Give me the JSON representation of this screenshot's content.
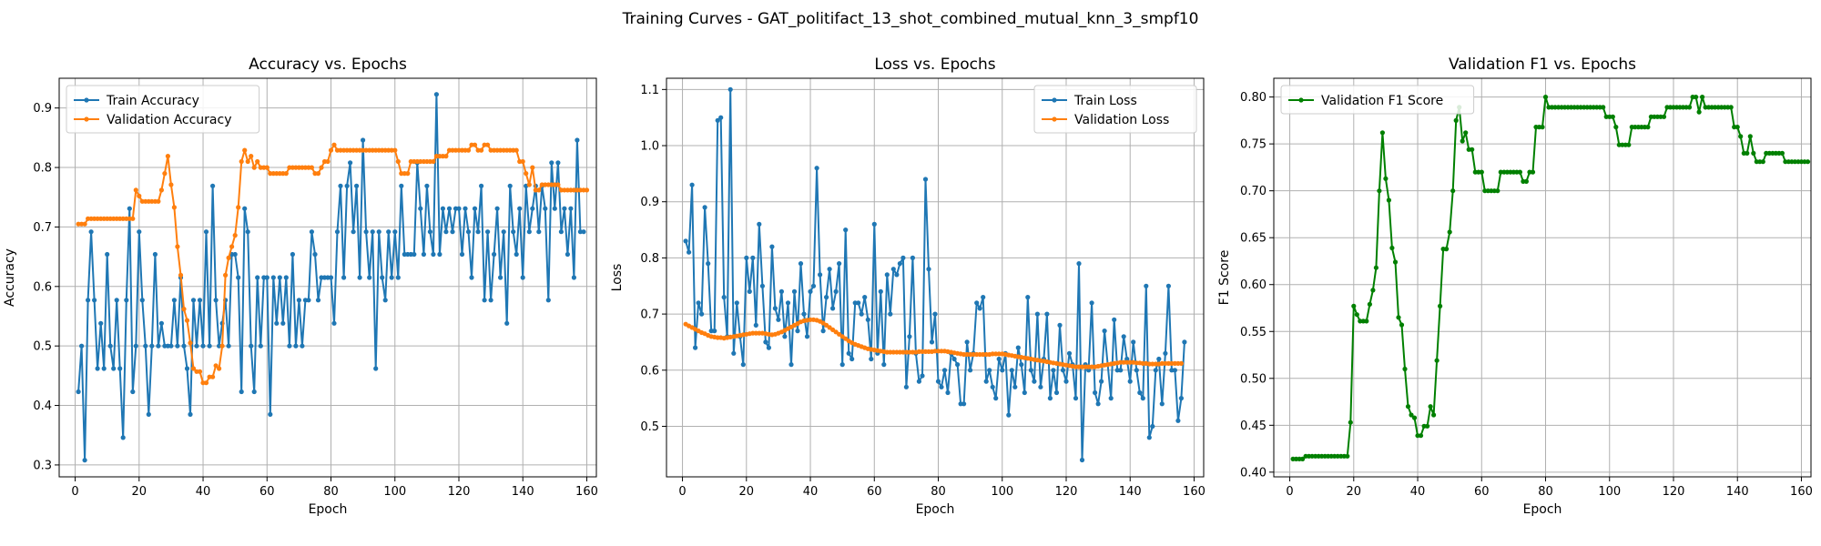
{
  "suptitle": "Training Curves - GAT_politifact_13_shot_combined_mutual_knn_3_smpf10",
  "colors": {
    "train": "#1f77b4",
    "val": "#ff7f0e",
    "f1": "#008000",
    "grid": "#b0b0b0"
  },
  "chart_data": [
    {
      "type": "line",
      "title": "Accuracy vs. Epochs",
      "xlabel": "Epoch",
      "ylabel": "Accuracy",
      "xlim": [
        -5,
        163
      ],
      "ylim": [
        0.28,
        0.95
      ],
      "xticks": [
        0,
        20,
        40,
        60,
        80,
        100,
        120,
        140,
        160
      ],
      "yticks": [
        0.3,
        0.4,
        0.5,
        0.6,
        0.7,
        0.8,
        0.9
      ],
      "ytick_labels": [
        "0.3",
        "0.4",
        "0.5",
        "0.6",
        "0.7",
        "0.8",
        "0.9"
      ],
      "grid": true,
      "legend": "upper-left",
      "x_start": 1,
      "series": [
        {
          "name": "Train Accuracy",
          "color": "#1f77b4",
          "values": [
            0.423,
            0.5,
            0.308,
            0.577,
            0.692,
            0.577,
            0.462,
            0.538,
            0.462,
            0.654,
            0.5,
            0.462,
            0.577,
            0.462,
            0.346,
            0.577,
            0.731,
            0.423,
            0.5,
            0.692,
            0.577,
            0.5,
            0.385,
            0.5,
            0.654,
            0.5,
            0.538,
            0.5,
            0.5,
            0.5,
            0.577,
            0.5,
            0.615,
            0.5,
            0.462,
            0.385,
            0.577,
            0.5,
            0.577,
            0.5,
            0.692,
            0.5,
            0.769,
            0.577,
            0.5,
            0.538,
            0.577,
            0.5,
            0.654,
            0.654,
            0.615,
            0.423,
            0.731,
            0.692,
            0.5,
            0.423,
            0.615,
            0.5,
            0.615,
            0.615,
            0.385,
            0.615,
            0.538,
            0.615,
            0.538,
            0.615,
            0.5,
            0.654,
            0.5,
            0.577,
            0.5,
            0.577,
            0.577,
            0.692,
            0.654,
            0.577,
            0.615,
            0.615,
            0.615,
            0.615,
            0.538,
            0.692,
            0.769,
            0.615,
            0.769,
            0.808,
            0.692,
            0.769,
            0.615,
            0.846,
            0.692,
            0.615,
            0.692,
            0.462,
            0.692,
            0.615,
            0.577,
            0.692,
            0.615,
            0.692,
            0.615,
            0.769,
            0.654,
            0.654,
            0.654,
            0.654,
            0.808,
            0.731,
            0.654,
            0.769,
            0.692,
            0.654,
            0.923,
            0.654,
            0.731,
            0.692,
            0.731,
            0.692,
            0.731,
            0.731,
            0.654,
            0.731,
            0.692,
            0.615,
            0.731,
            0.692,
            0.769,
            0.577,
            0.692,
            0.577,
            0.654,
            0.731,
            0.615,
            0.692,
            0.538,
            0.769,
            0.692,
            0.654,
            0.731,
            0.615,
            0.769,
            0.692,
            0.731,
            0.769,
            0.692,
            0.769,
            0.731,
            0.577,
            0.808,
            0.731,
            0.808,
            0.692,
            0.731,
            0.654,
            0.731,
            0.615,
            0.846,
            0.692,
            0.692
          ]
        },
        {
          "name": "Validation Accuracy",
          "color": "#ff7f0e",
          "values": [
            0.705,
            0.705,
            0.705,
            0.714,
            0.714,
            0.714,
            0.714,
            0.714,
            0.714,
            0.714,
            0.714,
            0.714,
            0.714,
            0.714,
            0.714,
            0.714,
            0.714,
            0.714,
            0.762,
            0.752,
            0.743,
            0.743,
            0.743,
            0.743,
            0.743,
            0.743,
            0.762,
            0.79,
            0.819,
            0.771,
            0.733,
            0.667,
            0.619,
            0.562,
            0.543,
            0.505,
            0.462,
            0.457,
            0.457,
            0.438,
            0.438,
            0.448,
            0.448,
            0.467,
            0.462,
            0.5,
            0.619,
            0.648,
            0.667,
            0.686,
            0.733,
            0.81,
            0.829,
            0.81,
            0.819,
            0.8,
            0.81,
            0.8,
            0.8,
            0.8,
            0.79,
            0.79,
            0.79,
            0.79,
            0.79,
            0.79,
            0.8,
            0.8,
            0.8,
            0.8,
            0.8,
            0.8,
            0.8,
            0.8,
            0.79,
            0.79,
            0.8,
            0.81,
            0.81,
            0.829,
            0.838,
            0.829,
            0.829,
            0.829,
            0.829,
            0.829,
            0.829,
            0.829,
            0.829,
            0.829,
            0.829,
            0.829,
            0.829,
            0.829,
            0.829,
            0.829,
            0.829,
            0.829,
            0.829,
            0.829,
            0.81,
            0.79,
            0.79,
            0.79,
            0.81,
            0.81,
            0.81,
            0.81,
            0.81,
            0.81,
            0.81,
            0.81,
            0.819,
            0.819,
            0.819,
            0.819,
            0.829,
            0.829,
            0.829,
            0.829,
            0.829,
            0.829,
            0.829,
            0.838,
            0.838,
            0.829,
            0.829,
            0.838,
            0.838,
            0.829,
            0.829,
            0.829,
            0.829,
            0.829,
            0.829,
            0.829,
            0.829,
            0.829,
            0.81,
            0.81,
            0.79,
            0.771,
            0.8,
            0.762,
            0.762,
            0.771,
            0.771,
            0.771,
            0.771,
            0.771,
            0.771,
            0.762,
            0.762,
            0.762,
            0.762,
            0.762,
            0.762,
            0.762,
            0.762,
            0.762
          ]
        }
      ]
    },
    {
      "type": "line",
      "title": "Loss vs. Epochs",
      "xlabel": "Epoch",
      "ylabel": "Loss",
      "xlim": [
        -5,
        163
      ],
      "ylim": [
        0.41,
        1.12
      ],
      "xticks": [
        0,
        20,
        40,
        60,
        80,
        100,
        120,
        140,
        160
      ],
      "yticks": [
        0.5,
        0.6,
        0.7,
        0.8,
        0.9,
        1.0,
        1.1
      ],
      "ytick_labels": [
        "0.5",
        "0.6",
        "0.7",
        "0.8",
        "0.9",
        "1.0",
        "1.1"
      ],
      "grid": true,
      "legend": "upper-right",
      "x_start": 1,
      "series": [
        {
          "name": "Train Loss",
          "color": "#1f77b4",
          "values": [
            0.83,
            0.81,
            0.93,
            0.64,
            0.72,
            0.7,
            0.89,
            0.79,
            0.67,
            0.67,
            1.045,
            1.05,
            0.73,
            0.66,
            1.1,
            0.63,
            0.72,
            0.66,
            0.61,
            0.8,
            0.74,
            0.8,
            0.68,
            0.86,
            0.75,
            0.65,
            0.64,
            0.82,
            0.71,
            0.69,
            0.74,
            0.66,
            0.72,
            0.61,
            0.74,
            0.67,
            0.79,
            0.7,
            0.66,
            0.74,
            0.75,
            0.96,
            0.77,
            0.67,
            0.73,
            0.78,
            0.71,
            0.74,
            0.79,
            0.61,
            0.85,
            0.63,
            0.62,
            0.72,
            0.72,
            0.7,
            0.73,
            0.69,
            0.62,
            0.86,
            0.63,
            0.74,
            0.61,
            0.77,
            0.7,
            0.78,
            0.77,
            0.79,
            0.8,
            0.57,
            0.66,
            0.8,
            0.63,
            0.58,
            0.59,
            0.94,
            0.78,
            0.65,
            0.7,
            0.58,
            0.57,
            0.6,
            0.56,
            0.63,
            0.62,
            0.61,
            0.54,
            0.54,
            0.65,
            0.6,
            0.63,
            0.72,
            0.71,
            0.73,
            0.58,
            0.6,
            0.57,
            0.55,
            0.62,
            0.6,
            0.63,
            0.52,
            0.6,
            0.57,
            0.64,
            0.61,
            0.56,
            0.73,
            0.6,
            0.58,
            0.7,
            0.57,
            0.62,
            0.7,
            0.55,
            0.6,
            0.56,
            0.68,
            0.6,
            0.58,
            0.63,
            0.61,
            0.55,
            0.79,
            0.44,
            0.61,
            0.6,
            0.72,
            0.56,
            0.54,
            0.58,
            0.67,
            0.61,
            0.55,
            0.69,
            0.6,
            0.6,
            0.66,
            0.62,
            0.58,
            0.65,
            0.6,
            0.56,
            0.55,
            0.75,
            0.48,
            0.5,
            0.6,
            0.62,
            0.54,
            0.63,
            0.75,
            0.6,
            0.6,
            0.51,
            0.55,
            0.65
          ]
        },
        {
          "name": "Validation Loss",
          "color": "#ff7f0e",
          "values": [
            0.682,
            0.679,
            0.676,
            0.673,
            0.67,
            0.667,
            0.665,
            0.662,
            0.66,
            0.659,
            0.658,
            0.658,
            0.657,
            0.658,
            0.659,
            0.66,
            0.661,
            0.662,
            0.663,
            0.664,
            0.665,
            0.666,
            0.666,
            0.666,
            0.666,
            0.665,
            0.664,
            0.663,
            0.664,
            0.666,
            0.668,
            0.671,
            0.674,
            0.677,
            0.68,
            0.683,
            0.686,
            0.688,
            0.689,
            0.69,
            0.69,
            0.689,
            0.687,
            0.684,
            0.68,
            0.676,
            0.672,
            0.668,
            0.664,
            0.66,
            0.656,
            0.652,
            0.649,
            0.646,
            0.644,
            0.642,
            0.64,
            0.638,
            0.637,
            0.636,
            0.635,
            0.634,
            0.633,
            0.632,
            0.632,
            0.632,
            0.632,
            0.632,
            0.632,
            0.632,
            0.632,
            0.632,
            0.632,
            0.633,
            0.633,
            0.633,
            0.633,
            0.633,
            0.634,
            0.634,
            0.634,
            0.634,
            0.633,
            0.632,
            0.631,
            0.63,
            0.629,
            0.628,
            0.628,
            0.628,
            0.628,
            0.628,
            0.628,
            0.628,
            0.628,
            0.628,
            0.629,
            0.629,
            0.629,
            0.629,
            0.628,
            0.627,
            0.626,
            0.625,
            0.624,
            0.623,
            0.622,
            0.621,
            0.62,
            0.619,
            0.618,
            0.617,
            0.616,
            0.615,
            0.614,
            0.613,
            0.612,
            0.611,
            0.61,
            0.609,
            0.608,
            0.607,
            0.606,
            0.606,
            0.606,
            0.606,
            0.606,
            0.606,
            0.606,
            0.607,
            0.608,
            0.609,
            0.61,
            0.611,
            0.612,
            0.613,
            0.614,
            0.614,
            0.614,
            0.614,
            0.614,
            0.613,
            0.613,
            0.612,
            0.612,
            0.611,
            0.611,
            0.611,
            0.611,
            0.612,
            0.612,
            0.612,
            0.612,
            0.612,
            0.612,
            0.612
          ]
        }
      ]
    },
    {
      "type": "line",
      "title": "Validation F1 vs. Epochs",
      "xlabel": "Epoch",
      "ylabel": "F1 Score",
      "xlim": [
        -5,
        163
      ],
      "ylim": [
        0.395,
        0.82
      ],
      "xticks": [
        0,
        20,
        40,
        60,
        80,
        100,
        120,
        140,
        160
      ],
      "yticks": [
        0.4,
        0.45,
        0.5,
        0.55,
        0.6,
        0.65,
        0.7,
        0.75,
        0.8
      ],
      "ytick_labels": [
        "0.40",
        "0.45",
        "0.50",
        "0.55",
        "0.60",
        "0.65",
        "0.70",
        "0.75",
        "0.80"
      ],
      "grid": true,
      "legend": "upper-left",
      "x_start": 1,
      "series": [
        {
          "name": "Validation F1 Score",
          "color": "#008000",
          "values": [
            0.414,
            0.414,
            0.414,
            0.414,
            0.417,
            0.417,
            0.417,
            0.417,
            0.417,
            0.417,
            0.417,
            0.417,
            0.417,
            0.417,
            0.417,
            0.417,
            0.417,
            0.417,
            0.453,
            0.577,
            0.568,
            0.561,
            0.561,
            0.561,
            0.579,
            0.594,
            0.618,
            0.7,
            0.762,
            0.713,
            0.69,
            0.639,
            0.624,
            0.565,
            0.557,
            0.51,
            0.47,
            0.461,
            0.458,
            0.439,
            0.439,
            0.449,
            0.449,
            0.47,
            0.461,
            0.519,
            0.577,
            0.638,
            0.638,
            0.656,
            0.7,
            0.775,
            0.789,
            0.753,
            0.762,
            0.744,
            0.744,
            0.72,
            0.72,
            0.72,
            0.7,
            0.7,
            0.7,
            0.7,
            0.7,
            0.72,
            0.72,
            0.72,
            0.72,
            0.72,
            0.72,
            0.72,
            0.71,
            0.71,
            0.72,
            0.72,
            0.768,
            0.768,
            0.768,
            0.8,
            0.789,
            0.789,
            0.789,
            0.789,
            0.789,
            0.789,
            0.789,
            0.789,
            0.789,
            0.789,
            0.789,
            0.789,
            0.789,
            0.789,
            0.789,
            0.789,
            0.789,
            0.789,
            0.779,
            0.779,
            0.779,
            0.768,
            0.749,
            0.749,
            0.749,
            0.749,
            0.768,
            0.768,
            0.768,
            0.768,
            0.768,
            0.768,
            0.779,
            0.779,
            0.779,
            0.779,
            0.779,
            0.789,
            0.789,
            0.789,
            0.789,
            0.789,
            0.789,
            0.789,
            0.789,
            0.8,
            0.8,
            0.784,
            0.8,
            0.789,
            0.789,
            0.789,
            0.789,
            0.789,
            0.789,
            0.789,
            0.789,
            0.789,
            0.768,
            0.768,
            0.758,
            0.74,
            0.74,
            0.758,
            0.74,
            0.731,
            0.731,
            0.731,
            0.74,
            0.74,
            0.74,
            0.74,
            0.74,
            0.74,
            0.731,
            0.731,
            0.731,
            0.731,
            0.731,
            0.731,
            0.731,
            0.731
          ]
        }
      ]
    }
  ]
}
